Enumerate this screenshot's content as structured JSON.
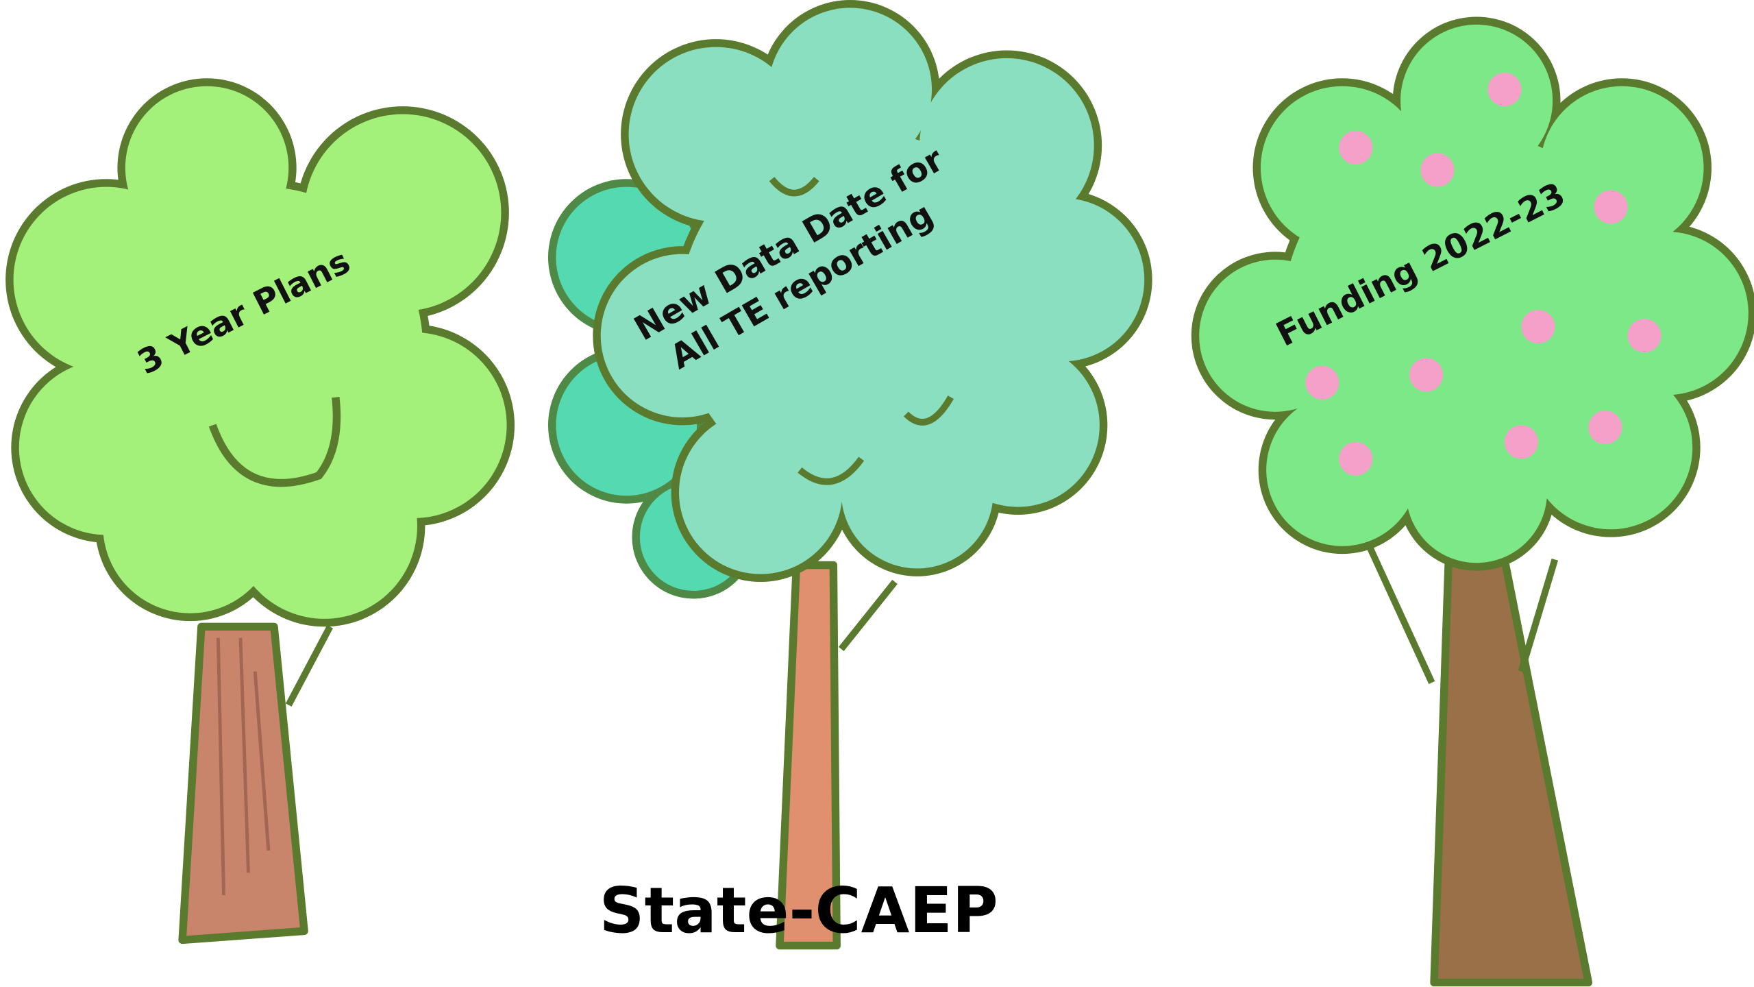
{
  "trees": [
    {
      "label": [
        "3 Year Plans"
      ]
    },
    {
      "label": [
        "New Data Date for",
        "All TE reporting"
      ]
    },
    {
      "label": [
        "Funding 2022-23"
      ]
    }
  ],
  "footer": "State-CAEP"
}
